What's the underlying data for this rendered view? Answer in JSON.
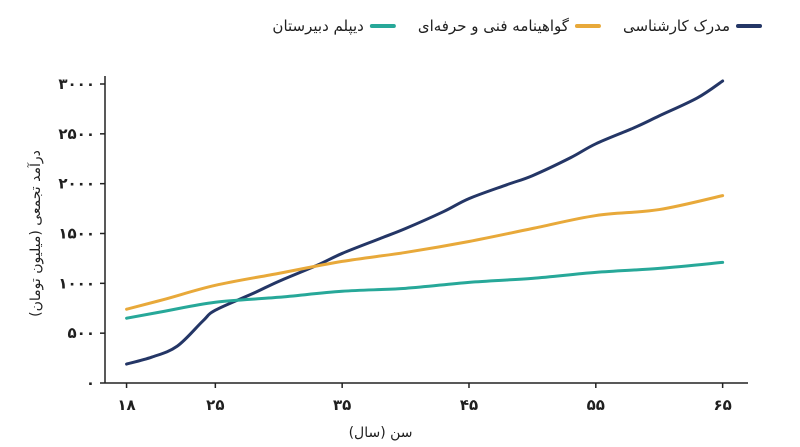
{
  "chart_data": {
    "type": "line",
    "title": "",
    "xlabel": "سن (سال)",
    "ylabel": "درآمد تجمعی (میلیون تومان)",
    "x": [
      18,
      21,
      25,
      30,
      35,
      40,
      45,
      50,
      55,
      60,
      63
    ],
    "xlim": [
      18,
      65
    ],
    "ylim": [
      0,
      3000
    ],
    "x_ticks": [
      18,
      25,
      35,
      45,
      55,
      65
    ],
    "x_tick_labels": [
      "۱۸",
      "۲۵",
      "۳۵",
      "۴۵",
      "۵۵",
      "۶۵"
    ],
    "y_ticks": [
      0,
      500,
      1000,
      1500,
      2000,
      2500,
      3000
    ],
    "y_tick_labels": [
      "۰",
      "۵۰۰",
      "۱۰۰۰",
      "۱۵۰۰",
      "۲۰۰۰",
      "۲۵۰۰",
      "۳۰۰۰"
    ],
    "grid": false,
    "legend_position": "top",
    "series": [
      {
        "name": "مدرک کارشناسی",
        "color": "#243666",
        "x": [
          18,
          20,
          22,
          24,
          25,
          28,
          30,
          33,
          35,
          38,
          40,
          43,
          45,
          48,
          50,
          53,
          55,
          58,
          60,
          63,
          65
        ],
        "values": [
          190,
          260,
          370,
          620,
          730,
          900,
          1020,
          1180,
          1300,
          1450,
          1550,
          1720,
          1850,
          1990,
          2080,
          2260,
          2400,
          2560,
          2680,
          2860,
          3030
        ]
      },
      {
        "name": "گواهینامه فنی و حرفه‌ای",
        "color": "#E8A93A",
        "x": [
          18,
          21,
          25,
          30,
          35,
          40,
          45,
          50,
          55,
          60,
          65
        ],
        "values": [
          740,
          840,
          980,
          1100,
          1220,
          1310,
          1420,
          1550,
          1680,
          1740,
          1880
        ]
      },
      {
        "name": "دیپلم دبیرستان",
        "color": "#27A899",
        "x": [
          18,
          21,
          25,
          30,
          35,
          40,
          45,
          50,
          55,
          60,
          65
        ],
        "values": [
          650,
          720,
          810,
          860,
          920,
          950,
          1010,
          1050,
          1110,
          1150,
          1210
        ]
      }
    ]
  }
}
